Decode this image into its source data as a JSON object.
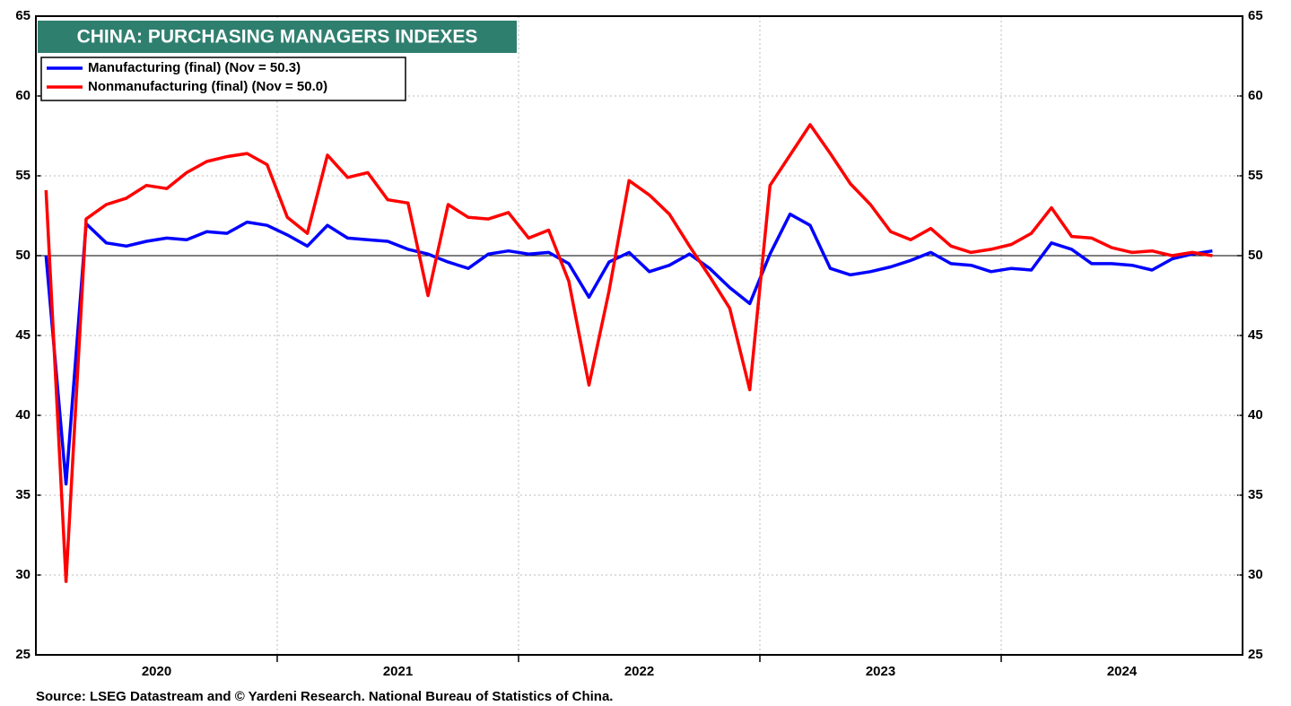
{
  "chart_data": {
    "type": "line",
    "title": "CHINA: PURCHASING MANAGERS INDEXES",
    "source": "Source: LSEG Datastream and © Yardeni Research. National Bureau of Statistics of China.",
    "x": [
      2020.042,
      2020.125,
      2020.208,
      2020.292,
      2020.375,
      2020.458,
      2020.542,
      2020.625,
      2020.708,
      2020.792,
      2020.875,
      2020.958,
      2021.042,
      2021.125,
      2021.208,
      2021.292,
      2021.375,
      2021.458,
      2021.542,
      2021.625,
      2021.708,
      2021.792,
      2021.875,
      2021.958,
      2022.042,
      2022.125,
      2022.208,
      2022.292,
      2022.375,
      2022.458,
      2022.542,
      2022.625,
      2022.708,
      2022.792,
      2022.875,
      2022.958,
      2023.042,
      2023.125,
      2023.208,
      2023.292,
      2023.375,
      2023.458,
      2023.542,
      2023.625,
      2023.708,
      2023.792,
      2023.875,
      2023.958,
      2024.042,
      2024.125,
      2024.208,
      2024.292,
      2024.375,
      2024.458,
      2024.542,
      2024.625,
      2024.708,
      2024.792,
      2024.875
    ],
    "series": [
      {
        "name": "Manufacturing (final) (Nov = 50.3)",
        "color": "#0000ff",
        "values": [
          50.0,
          35.7,
          52.0,
          50.8,
          50.6,
          50.9,
          51.1,
          51.0,
          51.5,
          51.4,
          52.1,
          51.9,
          51.3,
          50.6,
          51.9,
          51.1,
          51.0,
          50.9,
          50.4,
          50.1,
          49.6,
          49.2,
          50.1,
          50.3,
          50.1,
          50.2,
          49.5,
          47.4,
          49.6,
          50.2,
          49.0,
          49.4,
          50.1,
          49.2,
          48.0,
          47.0,
          50.1,
          52.6,
          51.9,
          49.2,
          48.8,
          49.0,
          49.3,
          49.7,
          50.2,
          49.5,
          49.4,
          49.0,
          49.2,
          49.1,
          50.8,
          50.4,
          49.5,
          49.5,
          49.4,
          49.1,
          49.8,
          50.1,
          50.3
        ]
      },
      {
        "name": "Nonmanufacturing (final) (Nov = 50.0)",
        "color": "#ff0000",
        "values": [
          54.1,
          29.6,
          52.3,
          53.2,
          53.6,
          54.4,
          54.2,
          55.2,
          55.9,
          56.2,
          56.4,
          55.7,
          52.4,
          51.4,
          56.3,
          54.9,
          55.2,
          53.5,
          53.3,
          47.5,
          53.2,
          52.4,
          52.3,
          52.7,
          51.1,
          51.6,
          48.4,
          41.9,
          47.8,
          54.7,
          53.8,
          52.6,
          50.6,
          48.7,
          46.7,
          41.6,
          54.4,
          56.3,
          58.2,
          56.4,
          54.5,
          53.2,
          51.5,
          51.0,
          51.7,
          50.6,
          50.2,
          50.4,
          50.7,
          51.4,
          53.0,
          51.2,
          51.1,
          50.5,
          50.2,
          50.3,
          50.0,
          50.2,
          50.0
        ]
      }
    ],
    "xlim": [
      2020,
      2025
    ],
    "xticks": [
      {
        "value": 2020.5,
        "label": "2020"
      },
      {
        "value": 2021.5,
        "label": "2021"
      },
      {
        "value": 2022.5,
        "label": "2022"
      },
      {
        "value": 2023.5,
        "label": "2023"
      },
      {
        "value": 2024.5,
        "label": "2024"
      }
    ],
    "xgrid": [
      2021,
      2022,
      2023,
      2024
    ],
    "ylim": [
      25,
      65
    ],
    "yticks": [
      25,
      30,
      35,
      40,
      45,
      50,
      55,
      60,
      65
    ],
    "reference_line": 50,
    "grid": true,
    "legend": "upper left"
  }
}
